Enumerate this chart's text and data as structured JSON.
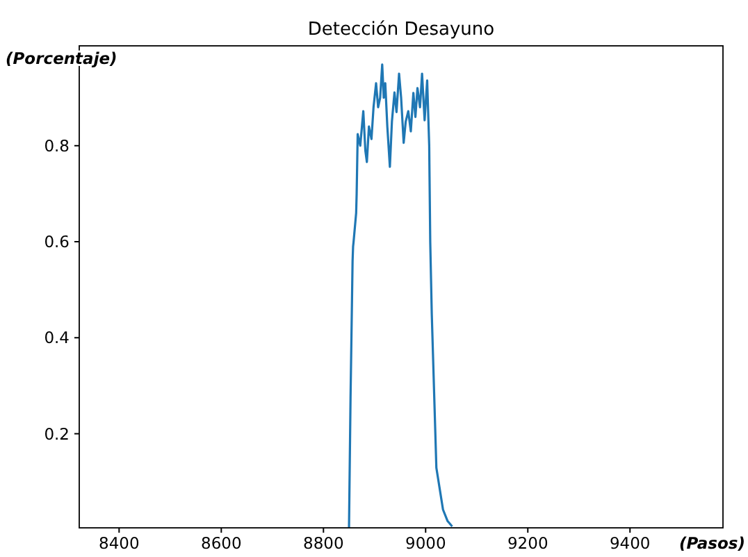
{
  "chart_data": {
    "type": "line",
    "title": "Detección Desayuno",
    "xlabel": "(Pasos)",
    "ylabel": "(Porcentaje)",
    "xlim": [
      8322,
      9582
    ],
    "ylim": [
      0.004,
      1.008
    ],
    "xticks": [
      8400,
      8600,
      8800,
      9000,
      9200,
      9400
    ],
    "yticks": [
      0.2,
      0.4,
      0.6,
      0.8
    ],
    "grid": false,
    "series": [
      {
        "color": "#1f77b4",
        "x": [
          8850,
          8853,
          8857,
          8858,
          8859,
          8864,
          8865,
          8867,
          8872,
          8878,
          8882,
          8885,
          8889,
          8894,
          8898,
          8903,
          8907,
          8911,
          8915,
          8918,
          8921,
          8925,
          8930,
          8934,
          8939,
          8943,
          8948,
          8952,
          8957,
          8961,
          8966,
          8971,
          8976,
          8980,
          8984,
          8989,
          8993,
          8998,
          9003,
          9007,
          9009,
          9012,
          9021,
          9034,
          9043,
          9052
        ],
        "values": [
          0.004,
          0.274,
          0.56,
          0.59,
          0.6,
          0.66,
          0.7,
          0.824,
          0.8,
          0.872,
          0.79,
          0.766,
          0.84,
          0.814,
          0.88,
          0.93,
          0.88,
          0.9,
          0.969,
          0.9,
          0.93,
          0.84,
          0.756,
          0.85,
          0.911,
          0.87,
          0.95,
          0.9,
          0.806,
          0.85,
          0.872,
          0.83,
          0.91,
          0.86,
          0.92,
          0.88,
          0.95,
          0.853,
          0.936,
          0.8,
          0.6,
          0.45,
          0.129,
          0.042,
          0.018,
          0.007
        ]
      }
    ]
  }
}
